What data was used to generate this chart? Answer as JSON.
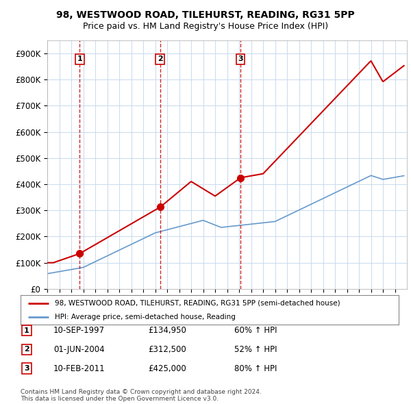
{
  "title": "98, WESTWOOD ROAD, TILEHURST, READING, RG31 5PP",
  "subtitle": "Price paid vs. HM Land Registry's House Price Index (HPI)",
  "ylim": [
    0,
    950000
  ],
  "yticks": [
    0,
    100000,
    200000,
    300000,
    400000,
    500000,
    600000,
    700000,
    800000,
    900000
  ],
  "ytick_labels": [
    "£0",
    "£100K",
    "£200K",
    "£300K",
    "£400K",
    "£500K",
    "£600K",
    "£700K",
    "£800K",
    "£900K"
  ],
  "sale_prices": [
    134950,
    312500,
    425000
  ],
  "sale_year_floats": [
    1997.708,
    2004.417,
    2011.125
  ],
  "sale_labels": [
    "1",
    "2",
    "3"
  ],
  "sale_label_entries": [
    {
      "num": "1",
      "date": "10-SEP-1997",
      "price": "£134,950",
      "pct": "60% ↑ HPI"
    },
    {
      "num": "2",
      "date": "01-JUN-2004",
      "price": "£312,500",
      "pct": "52% ↑ HPI"
    },
    {
      "num": "3",
      "date": "10-FEB-2011",
      "price": "£425,000",
      "pct": "80% ↑ HPI"
    }
  ],
  "legend_entries": [
    "98, WESTWOOD ROAD, TILEHURST, READING, RG31 5PP (semi-detached house)",
    "HPI: Average price, semi-detached house, Reading"
  ],
  "footer": "Contains HM Land Registry data © Crown copyright and database right 2024.\nThis data is licensed under the Open Government Licence v3.0.",
  "red_line_color": "#cc0000",
  "blue_line_color": "#6699cc",
  "grid_color": "#ccddee",
  "background_color": "#ffffff",
  "dashed_line_color": "#cc0000"
}
